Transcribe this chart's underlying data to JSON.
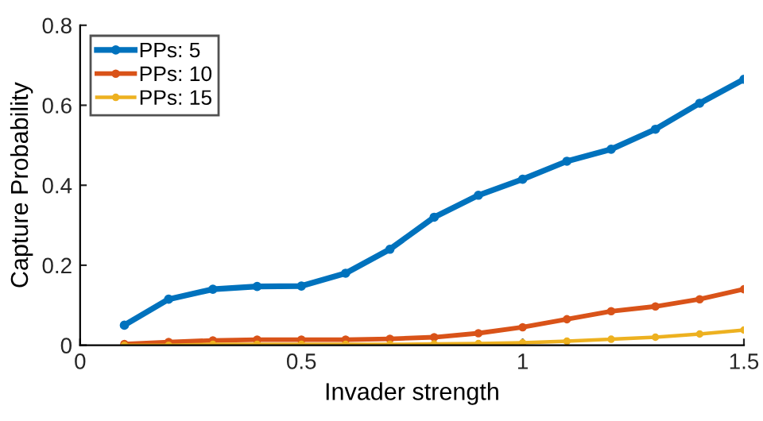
{
  "chart_data": {
    "type": "line",
    "xlabel": "Invader strength",
    "ylabel": "Capture Probability",
    "x": [
      0.1,
      0.2,
      0.3,
      0.4,
      0.5,
      0.6,
      0.7,
      0.8,
      0.9,
      1.0,
      1.1,
      1.2,
      1.3,
      1.4,
      1.5
    ],
    "series": [
      {
        "name": "PPs: 5",
        "color": "#0072bd",
        "values": [
          0.05,
          0.115,
          0.14,
          0.147,
          0.148,
          0.18,
          0.24,
          0.32,
          0.375,
          0.415,
          0.46,
          0.49,
          0.54,
          0.605,
          0.665
        ]
      },
      {
        "name": "PPs: 10",
        "color": "#d95319",
        "values": [
          0.003,
          0.008,
          0.012,
          0.014,
          0.014,
          0.014,
          0.016,
          0.02,
          0.03,
          0.045,
          0.065,
          0.085,
          0.097,
          0.115,
          0.14
        ]
      },
      {
        "name": "PPs: 15",
        "color": "#edb120",
        "values": [
          0.0,
          0.0,
          0.002,
          0.002,
          0.002,
          0.002,
          0.002,
          0.003,
          0.004,
          0.006,
          0.01,
          0.015,
          0.02,
          0.028,
          0.038
        ]
      }
    ],
    "xlim": [
      0,
      1.5
    ],
    "xticks": [
      0,
      0.5,
      1,
      1.5
    ],
    "ylim": [
      0,
      0.8
    ],
    "yticks": [
      0,
      0.2,
      0.4,
      0.6,
      0.8
    ],
    "grid": false,
    "legend": "top left",
    "marker": "circle",
    "line_style": "solid"
  }
}
